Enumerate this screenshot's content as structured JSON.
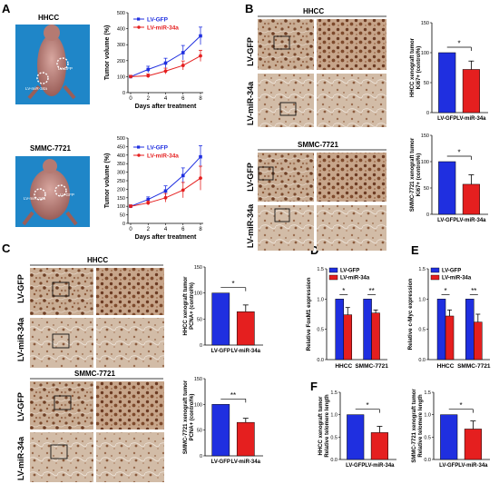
{
  "panels": {
    "A": {
      "letter": "A",
      "mouse_top": {
        "label": "HHCC",
        "tag_gfp": "LV-GFP",
        "tag_mir": "LV-miR-34a"
      },
      "mouse_bottom": {
        "label": "SMMC-7721",
        "tag_gfp": "LV-GFP",
        "tag_mir": "LV-miR-34a"
      }
    },
    "B": {
      "letter": "B",
      "ihc_top_title": "HHCC",
      "ihc_bottom_title": "SMMC-7721",
      "row_gfp": "LV-GFP",
      "row_mir": "LV-miR-34a"
    },
    "C": {
      "letter": "C",
      "ihc_top_title": "HHCC",
      "ihc_bottom_title": "SMMC-7721",
      "row_gfp": "LV-GFP",
      "row_mir": "LV-miR-34a"
    },
    "D": {
      "letter": "D"
    },
    "E": {
      "letter": "E"
    },
    "F": {
      "letter": "F"
    }
  },
  "colors": {
    "gfp": "#1f2fe0",
    "mir": "#e51f1f",
    "tissue": "#b7977c",
    "stain": "#7a4326"
  },
  "chart_data": [
    {
      "id": "A-top",
      "type": "line",
      "x": [
        0,
        2,
        4,
        6,
        8
      ],
      "xlabel": "Days after treatment",
      "ylabel": "Tumor volume (%)",
      "yticks": [
        0,
        100,
        200,
        300,
        400,
        500
      ],
      "ylim": [
        0,
        500
      ],
      "series": [
        {
          "name": "LV-GFP",
          "values": [
            100,
            145,
            185,
            250,
            355
          ],
          "err": [
            8,
            20,
            30,
            45,
            55
          ]
        },
        {
          "name": "LV-miR-34a",
          "values": [
            100,
            105,
            135,
            170,
            230
          ],
          "err": [
            8,
            12,
            18,
            28,
            35
          ]
        }
      ]
    },
    {
      "id": "A-bottom",
      "type": "line",
      "x": [
        0,
        2,
        4,
        6,
        8
      ],
      "xlabel": "Days after treatment",
      "ylabel": "Tumor volume (%)",
      "yticks": [
        0,
        50,
        100,
        150,
        200,
        250,
        300,
        350,
        400,
        450,
        500
      ],
      "ylim": [
        0,
        500
      ],
      "series": [
        {
          "name": "LV-GFP",
          "values": [
            100,
            140,
            190,
            280,
            390
          ],
          "err": [
            8,
            15,
            30,
            45,
            65
          ]
        },
        {
          "name": "LV-miR-34a",
          "values": [
            100,
            120,
            150,
            195,
            265
          ],
          "err": [
            8,
            12,
            25,
            45,
            70
          ]
        }
      ]
    },
    {
      "id": "B-top",
      "type": "bar",
      "categories": [
        "LV-GFP",
        "LV-miR-34a"
      ],
      "values": [
        100,
        72
      ],
      "err": [
        0,
        14
      ],
      "ylabel": "HHCC xenograft tumor Ki67+ (control%)",
      "yticks": [
        0,
        50,
        100,
        150
      ],
      "ylim": [
        0,
        150
      ],
      "sig": "*"
    },
    {
      "id": "B-bottom",
      "type": "bar",
      "categories": [
        "LV-GFP",
        "LV-miR-34a"
      ],
      "values": [
        100,
        57
      ],
      "err": [
        0,
        18
      ],
      "ylabel": "SMMC-7721 xenograft tumor Ki67+ (control%)",
      "yticks": [
        0,
        50,
        100,
        150
      ],
      "ylim": [
        0,
        150
      ],
      "sig": "*"
    },
    {
      "id": "C-top",
      "type": "bar",
      "categories": [
        "LV-GFP",
        "LV-miR-34a"
      ],
      "values": [
        100,
        64
      ],
      "err": [
        0,
        13
      ],
      "ylabel": "HHCC xenograft tumor PCNA+ (control%)",
      "yticks": [
        0,
        50,
        100,
        150
      ],
      "ylim": [
        0,
        150
      ],
      "sig": "*"
    },
    {
      "id": "C-bottom",
      "type": "bar",
      "categories": [
        "LV-GFP",
        "LV-miR-34a"
      ],
      "values": [
        100,
        65
      ],
      "err": [
        0,
        8
      ],
      "ylabel": "SMMC-7721 xenograft tumor PCNA+ (control%)",
      "yticks": [
        0,
        50,
        100,
        150
      ],
      "ylim": [
        0,
        150
      ],
      "sig": "**"
    },
    {
      "id": "D",
      "type": "bar",
      "categories": [
        "HHCC",
        "SMMC-7721"
      ],
      "ylabel": "Relative FoxM1 expression",
      "yticks": [
        0.0,
        0.5,
        1.0,
        1.5
      ],
      "ylim": [
        0,
        1.5
      ],
      "series": [
        {
          "name": "LV-GFP",
          "values": [
            1.0,
            1.0
          ],
          "err": [
            0,
            0
          ]
        },
        {
          "name": "LV-miR-34a",
          "values": [
            0.74,
            0.77
          ],
          "err": [
            0.12,
            0.05
          ]
        }
      ],
      "sig": [
        "*",
        "**"
      ]
    },
    {
      "id": "E",
      "type": "bar",
      "categories": [
        "HHCC",
        "SMMC-7721"
      ],
      "ylabel": "Relative c-Myc expression",
      "yticks": [
        0.0,
        0.5,
        1.0,
        1.5
      ],
      "ylim": [
        0,
        1.5
      ],
      "series": [
        {
          "name": "LV-GFP",
          "values": [
            1.0,
            1.0
          ],
          "err": [
            0,
            0
          ]
        },
        {
          "name": "LV-miR-34a",
          "values": [
            0.72,
            0.62
          ],
          "err": [
            0.1,
            0.13
          ]
        }
      ],
      "sig": [
        "*",
        "**"
      ]
    },
    {
      "id": "F-left",
      "type": "bar",
      "categories": [
        "LV-GFP",
        "LV-miR-34a"
      ],
      "values": [
        1.0,
        0.6
      ],
      "err": [
        0,
        0.14
      ],
      "ylabel": "HHCC xenograft tumor Relative telomere length",
      "yticks": [
        0.0,
        0.5,
        1.0,
        1.5
      ],
      "ylim": [
        0,
        1.5
      ],
      "sig": "*"
    },
    {
      "id": "F-right",
      "type": "bar",
      "categories": [
        "LV-GFP",
        "LV-miR-34a"
      ],
      "values": [
        1.0,
        0.68
      ],
      "err": [
        0,
        0.18
      ],
      "ylabel": "SMMC-7721 xenograft tumor Relative telomere length",
      "yticks": [
        0.0,
        0.5,
        1.0,
        1.5
      ],
      "ylim": [
        0,
        1.5
      ],
      "sig": "*"
    }
  ]
}
